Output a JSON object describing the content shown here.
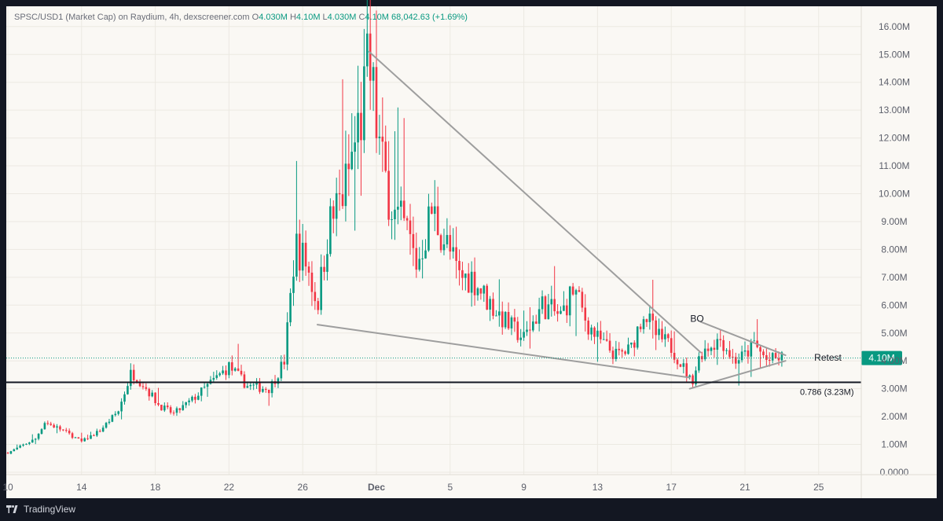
{
  "header": {
    "symbol_line": "SPSC/USD1 (Market Cap) on Raydium, 4h, dexscreener.com",
    "o_label": "O",
    "o_value": "4.030M",
    "h_label": "H",
    "h_value": "4.10M",
    "l_label": "L",
    "l_value": "4.030M",
    "c_label": "C",
    "c_value": "4.10M",
    "change": "68,042.63 (+1.69%)"
  },
  "footer": {
    "brand": "TradingView",
    "logo_icon": "tradingview-logo-icon"
  },
  "colors": {
    "up": "#089981",
    "down": "#f23645",
    "background": "#faf8f4",
    "frame": "#131722",
    "trendline": "#9e9e9e",
    "price_label": "#089981"
  },
  "chart_data": {
    "type": "candlestick",
    "interval": "4h",
    "y_unit": "M",
    "ylim": [
      0,
      16.0
    ],
    "yticks": [
      "16.00M",
      "15.00M",
      "14.00M",
      "13.00M",
      "12.00M",
      "11.00M",
      "10.00M",
      "9.00M",
      "8.00M",
      "7.00M",
      "6.00M",
      "5.00M",
      "4.00M",
      "3.00M",
      "2.00M",
      "1.00M",
      "0.0000"
    ],
    "xticks": [
      "10",
      "14",
      "18",
      "22",
      "26",
      "Dec",
      "5",
      "9",
      "13",
      "17",
      "21",
      "25"
    ],
    "last_price": 4.1,
    "last_price_label": "4.10M",
    "fib_level": {
      "value": 3.23,
      "label": "0.786 (3.23M)"
    },
    "annotations": [
      {
        "text": "BO",
        "date_index": 37.4,
        "value": 5.4
      },
      {
        "text": "Retest",
        "date_index": 44.5,
        "value": 4.0
      }
    ],
    "trendlines": [
      {
        "from": {
          "date_index": 19.6,
          "value": 15.1
        },
        "to": {
          "date_index": 37.6,
          "value": 4.3
        }
      },
      {
        "from": {
          "date_index": 16.8,
          "value": 5.3
        },
        "to": {
          "date_index": 37.0,
          "value": 3.4
        }
      },
      {
        "from": {
          "date_index": 37.6,
          "value": 5.4
        },
        "to": {
          "date_index": 42.2,
          "value": 4.2
        }
      },
      {
        "from": {
          "date_index": 37.0,
          "value": 3.0
        },
        "to": {
          "date_index": 42.2,
          "value": 4.0
        }
      }
    ],
    "anchors": [
      {
        "t": 0.0,
        "v": 0.7
      },
      {
        "t": 1.5,
        "v": 1.2
      },
      {
        "t": 2.0,
        "v": 1.8
      },
      {
        "t": 3.0,
        "v": 1.5
      },
      {
        "t": 4.0,
        "v": 1.1
      },
      {
        "t": 5.0,
        "v": 1.5
      },
      {
        "t": 6.0,
        "v": 2.2
      },
      {
        "t": 6.7,
        "v": 3.6
      },
      {
        "t": 7.3,
        "v": 3.2
      },
      {
        "t": 8.2,
        "v": 2.4
      },
      {
        "t": 9.0,
        "v": 2.1
      },
      {
        "t": 10.0,
        "v": 2.6
      },
      {
        "t": 11.0,
        "v": 3.2
      },
      {
        "t": 12.0,
        "v": 3.8
      },
      {
        "t": 13.0,
        "v": 3.1
      },
      {
        "t": 14.2,
        "v": 3.0
      },
      {
        "t": 15.0,
        "v": 4.0
      },
      {
        "t": 15.3,
        "v": 6.0
      },
      {
        "t": 15.6,
        "v": 8.2
      },
      {
        "t": 16.2,
        "v": 7.5
      },
      {
        "t": 16.8,
        "v": 6.0
      },
      {
        "t": 17.4,
        "v": 8.8
      },
      {
        "t": 18.3,
        "v": 10.2
      },
      {
        "t": 19.3,
        "v": 13.2
      },
      {
        "t": 19.6,
        "v": 14.6
      },
      {
        "t": 20.3,
        "v": 11.0
      },
      {
        "t": 21.0,
        "v": 9.2
      },
      {
        "t": 21.7,
        "v": 8.6
      },
      {
        "t": 22.2,
        "v": 7.4
      },
      {
        "t": 23.0,
        "v": 9.4
      },
      {
        "t": 23.8,
        "v": 8.2
      },
      {
        "t": 24.5,
        "v": 7.0
      },
      {
        "t": 25.2,
        "v": 7.0
      },
      {
        "t": 26.0,
        "v": 6.2
      },
      {
        "t": 27.0,
        "v": 5.4
      },
      {
        "t": 28.0,
        "v": 4.8
      },
      {
        "t": 29.0,
        "v": 6.0
      },
      {
        "t": 30.0,
        "v": 5.6
      },
      {
        "t": 30.7,
        "v": 6.6
      },
      {
        "t": 31.4,
        "v": 5.4
      },
      {
        "t": 32.0,
        "v": 4.8
      },
      {
        "t": 33.0,
        "v": 4.2
      },
      {
        "t": 33.8,
        "v": 4.4
      },
      {
        "t": 34.5,
        "v": 5.8
      },
      {
        "t": 35.2,
        "v": 4.9
      },
      {
        "t": 36.0,
        "v": 4.5
      },
      {
        "t": 36.8,
        "v": 3.6
      },
      {
        "t": 37.1,
        "v": 3.2
      },
      {
        "t": 37.6,
        "v": 4.3
      },
      {
        "t": 38.2,
        "v": 4.6
      },
      {
        "t": 38.7,
        "v": 4.8
      },
      {
        "t": 39.4,
        "v": 4.0
      },
      {
        "t": 40.0,
        "v": 4.2
      },
      {
        "t": 40.5,
        "v": 4.6
      },
      {
        "t": 41.2,
        "v": 4.0
      },
      {
        "t": 42.0,
        "v": 4.1
      }
    ],
    "date_start_index": 0,
    "date_end_index": 42.0
  }
}
